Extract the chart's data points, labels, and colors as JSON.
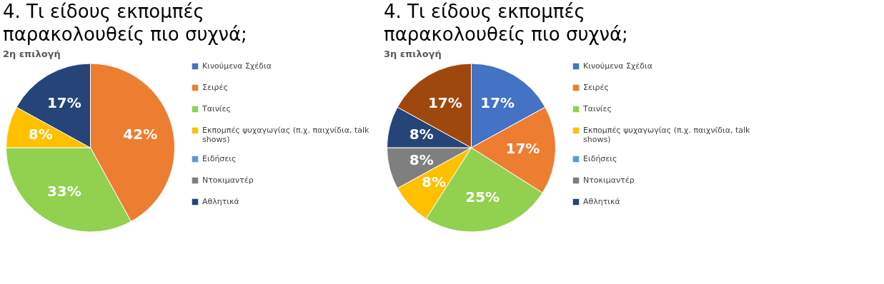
{
  "chart_data": [
    {
      "type": "pie",
      "title": "4. Τι είδους εκπομπές παρακολουθείς πιο συχνά;",
      "subtitle": "2η επιλογή",
      "categories": [
        "Κινούμενα Σχέδια",
        "Σειρές",
        "Ταινίες",
        "Εκπομπές ψυχαγωγίας (π.χ. παιχνίδια, talk shows)",
        "Ειδήσεις",
        "Ντοκιμαντέρ",
        "Αθλητικά"
      ],
      "values": [
        0,
        42,
        33,
        8,
        0,
        0,
        17
      ],
      "value_labels": [
        null,
        "42%",
        "33%",
        "8%",
        null,
        null,
        "17%"
      ],
      "colors": [
        "#4472c4",
        "#ed7d31",
        "#92d050",
        "#ffc000",
        "#5b9bd5",
        "#7f7f7f",
        "#264478"
      ],
      "legend": "right"
    },
    {
      "type": "pie",
      "title": "4. Τι είδους εκπομπές παρακολουθείς πιο συχνά;",
      "subtitle": "3η επιλογή",
      "categories": [
        "Κινούμενα Σχέδια",
        "Σειρές",
        "Ταινίες",
        "Εκπομπές ψυχαγωγίας (π.χ. παιχνίδια, talk shows)",
        "Ειδήσεις",
        "Ντοκιμαντέρ",
        "Αθλητικά",
        null
      ],
      "values": [
        17,
        17,
        25,
        8,
        0,
        8,
        8,
        17
      ],
      "value_labels": [
        "17%",
        "17%",
        "25%",
        "8%",
        null,
        "8%",
        "8%",
        "17%"
      ],
      "colors": [
        "#4472c4",
        "#ed7d31",
        "#92d050",
        "#ffc000",
        "#5b9bd5",
        "#7f7f7f",
        "#264478",
        "#9e480e"
      ],
      "legend": "right"
    }
  ]
}
